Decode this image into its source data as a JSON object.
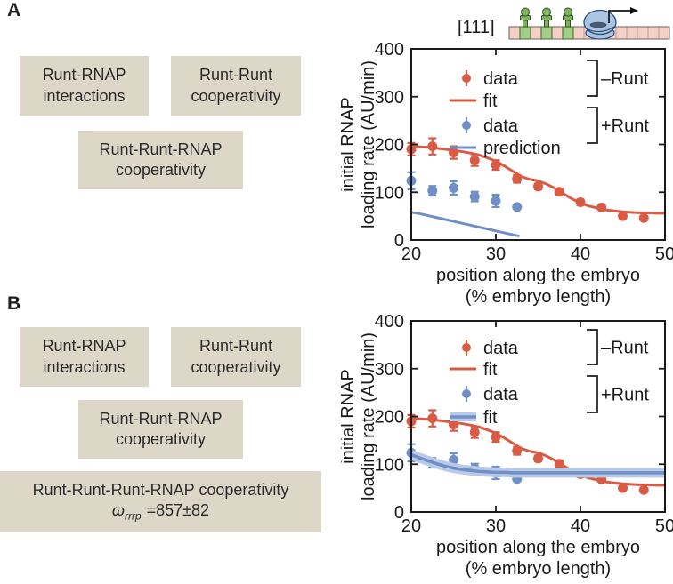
{
  "figure": {
    "panel_a": {
      "label": "A",
      "boxes": [
        {
          "lines": [
            "Runt-RNAP",
            "interactions"
          ]
        },
        {
          "lines": [
            "Runt-Runt",
            "cooperativity"
          ]
        },
        {
          "lines": [
            "Runt-Runt-RNAP",
            "cooperativity"
          ]
        }
      ],
      "construct": {
        "label": "[111]"
      }
    },
    "panel_b": {
      "label": "B",
      "boxes": [
        {
          "lines": [
            "Runt-RNAP",
            "interactions"
          ]
        },
        {
          "lines": [
            "Runt-Runt",
            "cooperativity"
          ]
        },
        {
          "lines": [
            "Runt-Runt-RNAP",
            "cooperativity"
          ]
        }
      ],
      "wide_box": {
        "line1": "Runt-Runt-Runt-RNAP cooperativity",
        "omega": "ω",
        "omega_sub": "rrrp",
        "value": "=857±82"
      }
    },
    "colors": {
      "minus_runt_red": "#d85b45",
      "plus_runt_blue": "#7090c5",
      "plus_runt_band": "#b9c9e8",
      "annotation_box_beige": "#ddd7c7"
    }
  },
  "chart_data": [
    {
      "id": "panel-a",
      "panel": "A",
      "type": "scatter",
      "title": "",
      "xlabel_lines": [
        "position along the embryo",
        "(% embryo length)"
      ],
      "ylabel_lines": [
        "initial RNAP",
        "loading rate (AU/min)"
      ],
      "xlim": [
        20,
        50
      ],
      "ylim": [
        0,
        400
      ],
      "xticks": [
        20,
        30,
        40,
        50
      ],
      "yticks": [
        0,
        100,
        200,
        300,
        400
      ],
      "grid": false,
      "series": [
        {
          "name": "minus-runt-data",
          "type": "scatter",
          "color": "#d85b45",
          "points": [
            [
              20,
              190,
              13
            ],
            [
              22.5,
              196,
              17
            ],
            [
              25,
              183,
              13
            ],
            [
              27.5,
              167,
              12
            ],
            [
              30,
              157,
              10
            ],
            [
              32.5,
              128,
              8
            ],
            [
              35,
              112,
              6
            ],
            [
              37.5,
              101,
              7
            ],
            [
              40,
              79,
              6
            ],
            [
              42.5,
              68,
              4
            ],
            [
              45,
              50,
              4
            ],
            [
              47.5,
              46,
              4
            ]
          ]
        },
        {
          "name": "minus-runt-fit",
          "type": "line",
          "color": "#d85b45",
          "width": 3,
          "points": [
            [
              20,
              196
            ],
            [
              22,
              194
            ],
            [
              24,
              190
            ],
            [
              26,
              185
            ],
            [
              27,
              182
            ],
            [
              28,
              178
            ],
            [
              29,
              172
            ],
            [
              30,
              165
            ],
            [
              31,
              155
            ],
            [
              32,
              144
            ],
            [
              33,
              133
            ],
            [
              34,
              127
            ],
            [
              35,
              124
            ],
            [
              36,
              117
            ],
            [
              37,
              108
            ],
            [
              38,
              97
            ],
            [
              39,
              86
            ],
            [
              40,
              78
            ],
            [
              41,
              71
            ],
            [
              42,
              67
            ],
            [
              43,
              63
            ],
            [
              44,
              61
            ],
            [
              45,
              59
            ],
            [
              46,
              58
            ],
            [
              47,
              57
            ],
            [
              48,
              57
            ],
            [
              49,
              56
            ],
            [
              50,
              56
            ]
          ]
        },
        {
          "name": "plus-runt-data",
          "type": "scatter",
          "color": "#7090c5",
          "points": [
            [
              20,
              124,
              18
            ],
            [
              22.5,
              103,
              10
            ],
            [
              25,
              109,
              14
            ],
            [
              27.5,
              91,
              10
            ],
            [
              30,
              82,
              13
            ],
            [
              32.5,
              69,
              0
            ]
          ]
        },
        {
          "name": "plus-runt-prediction",
          "type": "line",
          "color": "#7090c5",
          "width": 3,
          "points": [
            [
              20,
              58
            ],
            [
              21,
              55
            ],
            [
              22,
              51
            ],
            [
              23,
              47
            ],
            [
              24,
              43
            ],
            [
              25,
              39
            ],
            [
              26,
              35
            ],
            [
              27,
              31
            ],
            [
              28,
              27
            ],
            [
              29,
              23
            ],
            [
              30,
              19
            ],
            [
              31,
              15
            ],
            [
              32,
              11
            ],
            [
              32.8,
              8
            ]
          ]
        }
      ],
      "legend": {
        "position": "upper-right",
        "entries": [
          {
            "swatch": "marker",
            "color": "#d85b45",
            "label": "data"
          },
          {
            "swatch": "line",
            "color": "#d85b45",
            "label": "fit"
          },
          {
            "swatch": "marker",
            "color": "#7090c5",
            "label": "data"
          },
          {
            "swatch": "line",
            "color": "#7090c5",
            "label": "prediction"
          }
        ],
        "groups": [
          {
            "label": "–Runt",
            "first": 0,
            "last": 1
          },
          {
            "label": "+Runt",
            "first": 2,
            "last": 3
          }
        ]
      }
    },
    {
      "id": "panel-b",
      "panel": "B",
      "type": "scatter",
      "title": "",
      "xlabel_lines": [
        "position along the embryo",
        "(% embryo length)"
      ],
      "ylabel_lines": [
        "initial RNAP",
        "loading rate (AU/min)"
      ],
      "xlim": [
        20,
        50
      ],
      "ylim": [
        0,
        400
      ],
      "xticks": [
        20,
        30,
        40,
        50
      ],
      "yticks": [
        0,
        100,
        200,
        300,
        400
      ],
      "grid": false,
      "series": [
        {
          "name": "minus-runt-data",
          "type": "scatter",
          "color": "#d85b45",
          "points": [
            [
              20,
              190,
              13
            ],
            [
              22.5,
              196,
              17
            ],
            [
              25,
              183,
              13
            ],
            [
              27.5,
              167,
              12
            ],
            [
              30,
              157,
              10
            ],
            [
              32.5,
              128,
              8
            ],
            [
              35,
              112,
              6
            ],
            [
              37.5,
              101,
              7
            ],
            [
              40,
              79,
              6
            ],
            [
              42.5,
              68,
              4
            ],
            [
              45,
              50,
              4
            ],
            [
              47.5,
              46,
              4
            ]
          ]
        },
        {
          "name": "minus-runt-fit",
          "type": "line",
          "color": "#d85b45",
          "width": 3,
          "points": [
            [
              20,
              196
            ],
            [
              22,
              194
            ],
            [
              24,
              190
            ],
            [
              26,
              185
            ],
            [
              27,
              182
            ],
            [
              28,
              178
            ],
            [
              29,
              172
            ],
            [
              30,
              165
            ],
            [
              31,
              155
            ],
            [
              32,
              144
            ],
            [
              33,
              133
            ],
            [
              34,
              127
            ],
            [
              35,
              124
            ],
            [
              36,
              117
            ],
            [
              37,
              108
            ],
            [
              38,
              97
            ],
            [
              39,
              86
            ],
            [
              40,
              78
            ],
            [
              41,
              71
            ],
            [
              42,
              67
            ],
            [
              43,
              63
            ],
            [
              44,
              61
            ],
            [
              45,
              59
            ],
            [
              46,
              58
            ],
            [
              47,
              57
            ],
            [
              48,
              57
            ],
            [
              49,
              56
            ],
            [
              50,
              56
            ]
          ]
        },
        {
          "name": "plus-runt-data",
          "type": "scatter",
          "color": "#7090c5",
          "points": [
            [
              20,
              124,
              18
            ],
            [
              22.5,
              103,
              10
            ],
            [
              25,
              109,
              14
            ],
            [
              27.5,
              91,
              10
            ],
            [
              30,
              82,
              13
            ],
            [
              32.5,
              69,
              0
            ]
          ]
        },
        {
          "name": "plus-runt-fit",
          "type": "band-line",
          "color": "#7090c5",
          "band_color": "#b9c9e8",
          "width": 3.5,
          "band_width": 11,
          "points": [
            [
              20,
              120
            ],
            [
              21,
              113
            ],
            [
              22,
              107
            ],
            [
              23,
              101
            ],
            [
              24,
              96
            ],
            [
              25,
              92
            ],
            [
              26,
              89
            ],
            [
              27,
              87
            ],
            [
              28,
              85
            ],
            [
              29,
              84
            ],
            [
              30,
              83
            ],
            [
              31,
              83
            ],
            [
              32,
              82
            ],
            [
              34,
              82
            ],
            [
              36,
              82
            ],
            [
              38,
              82
            ],
            [
              40,
              82
            ],
            [
              42,
              82
            ],
            [
              44,
              82
            ],
            [
              46,
              82
            ],
            [
              48,
              82
            ],
            [
              50,
              82
            ]
          ]
        }
      ],
      "legend": {
        "position": "upper-right",
        "entries": [
          {
            "swatch": "marker",
            "color": "#d85b45",
            "label": "data"
          },
          {
            "swatch": "line",
            "color": "#d85b45",
            "label": "fit"
          },
          {
            "swatch": "marker",
            "color": "#7090c5",
            "label": "data"
          },
          {
            "swatch": "band-line",
            "color": "#7090c5",
            "band_color": "#b9c9e8",
            "label": "fit"
          }
        ],
        "groups": [
          {
            "label": "–Runt",
            "first": 0,
            "last": 1
          },
          {
            "label": "+Runt",
            "first": 2,
            "last": 3
          }
        ]
      }
    }
  ]
}
